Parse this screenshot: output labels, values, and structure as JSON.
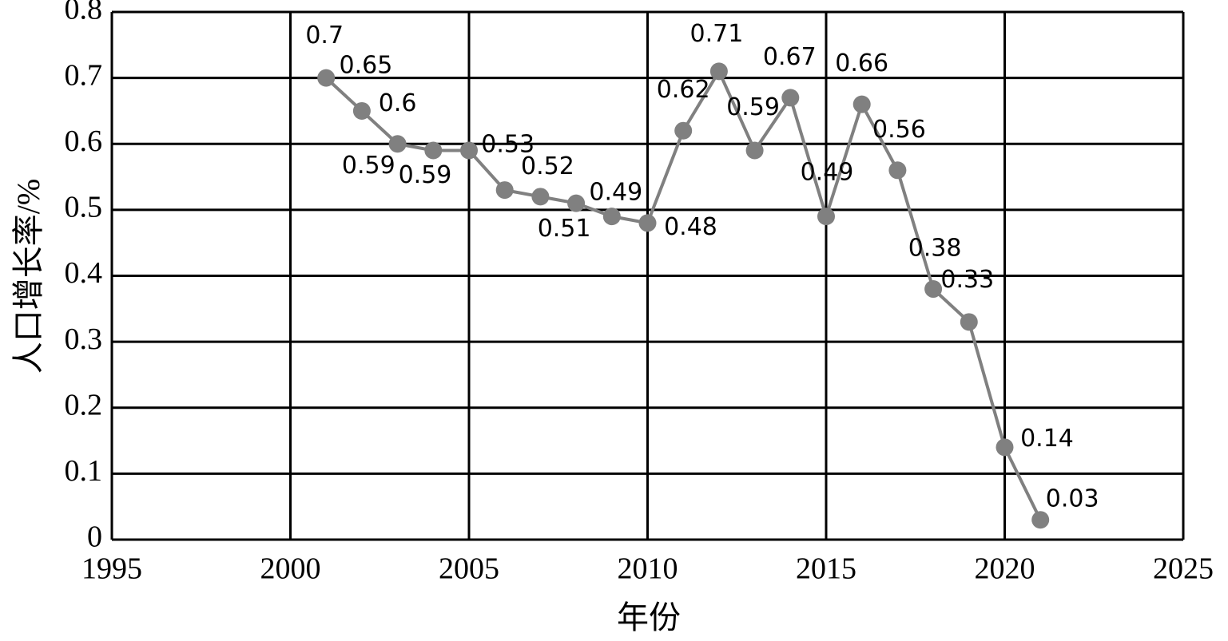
{
  "chart_data": {
    "type": "line",
    "x_label": "年份",
    "y_label": "人口增长率/%",
    "x": [
      2001,
      2002,
      2003,
      2004,
      2005,
      2006,
      2007,
      2008,
      2009,
      2010,
      2011,
      2012,
      2013,
      2014,
      2015,
      2016,
      2017,
      2018,
      2019,
      2020,
      2021
    ],
    "series": [
      {
        "color": "#808080",
        "values": [
          0.7,
          0.65,
          0.6,
          0.59,
          0.59,
          0.53,
          0.52,
          0.51,
          0.49,
          0.48,
          0.62,
          0.71,
          0.59,
          0.67,
          0.49,
          0.66,
          0.56,
          0.38,
          0.33,
          0.14,
          0.03
        ]
      }
    ],
    "xlim": [
      1995,
      2025
    ],
    "xticks": [
      1995,
      2000,
      2005,
      2010,
      2015,
      2020,
      2025
    ],
    "ylim": [
      0,
      0.8
    ],
    "yticks": [
      0,
      0.1,
      0.2,
      0.3,
      0.4,
      0.5,
      0.6,
      0.7,
      0.8
    ],
    "grid": true
  }
}
